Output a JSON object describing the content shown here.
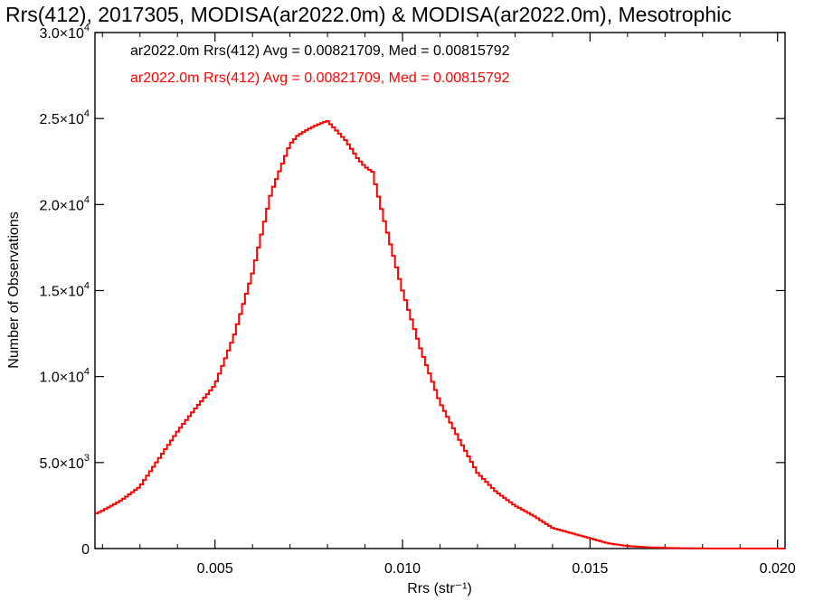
{
  "chart_data": {
    "type": "line",
    "step": true,
    "title": "Rrs(412), 2017305, MODISA(ar2022.0m) & MODISA(ar2022.0m), Mesotrophic",
    "xlabel": "Rrs (str⁻¹)",
    "ylabel": "Number of Observations",
    "xlim": [
      0.0018,
      0.0202
    ],
    "ylim": [
      0,
      30000
    ],
    "x_ticks": [
      {
        "value": 0.005,
        "label": "0.005"
      },
      {
        "value": 0.01,
        "label": "0.010"
      },
      {
        "value": 0.015,
        "label": "0.015"
      },
      {
        "value": 0.02,
        "label": "0.020"
      }
    ],
    "y_ticks": [
      {
        "value": 0,
        "mant": "0",
        "exp": ""
      },
      {
        "value": 5000,
        "mant": "5.0×10",
        "exp": "3"
      },
      {
        "value": 10000,
        "mant": "1.0×10",
        "exp": "4"
      },
      {
        "value": 15000,
        "mant": "1.5×10",
        "exp": "4"
      },
      {
        "value": 20000,
        "mant": "2.0×10",
        "exp": "4"
      },
      {
        "value": 25000,
        "mant": "2.5×10",
        "exp": "4"
      },
      {
        "value": 30000,
        "mant": "3.0×10",
        "exp": "4"
      }
    ],
    "annotations": [
      {
        "text": "ar2022.0m Rrs(412) Avg = 0.00821709, Med = 0.00815792",
        "color": "#000000"
      },
      {
        "text": "ar2022.0m Rrs(412) Avg = 0.00821709, Med = 0.00815792",
        "color": "#ff0000"
      }
    ],
    "series": [
      {
        "color": "#ff0000",
        "x": [
          0.0018,
          0.002,
          0.0025,
          0.003,
          0.0035,
          0.004,
          0.0045,
          0.005,
          0.0055,
          0.006,
          0.0065,
          0.007,
          0.0072,
          0.0075,
          0.0078,
          0.008,
          0.0082,
          0.0085,
          0.0088,
          0.009,
          0.0092,
          0.0095,
          0.01,
          0.0105,
          0.011,
          0.0115,
          0.012,
          0.0125,
          0.013,
          0.0135,
          0.014,
          0.0145,
          0.015,
          0.0155,
          0.016,
          0.0165,
          0.017,
          0.0175,
          0.018,
          0.019,
          0.02,
          0.0202
        ],
        "y": [
          2000,
          2200,
          2800,
          3600,
          5200,
          6800,
          8200,
          9500,
          12300,
          16000,
          20700,
          23500,
          24000,
          24400,
          24700,
          24850,
          24400,
          23700,
          22700,
          22200,
          21900,
          19200,
          15000,
          11500,
          8500,
          6400,
          4400,
          3300,
          2500,
          1900,
          1200,
          900,
          600,
          300,
          150,
          80,
          40,
          20,
          10,
          5,
          5,
          0
        ]
      }
    ]
  }
}
